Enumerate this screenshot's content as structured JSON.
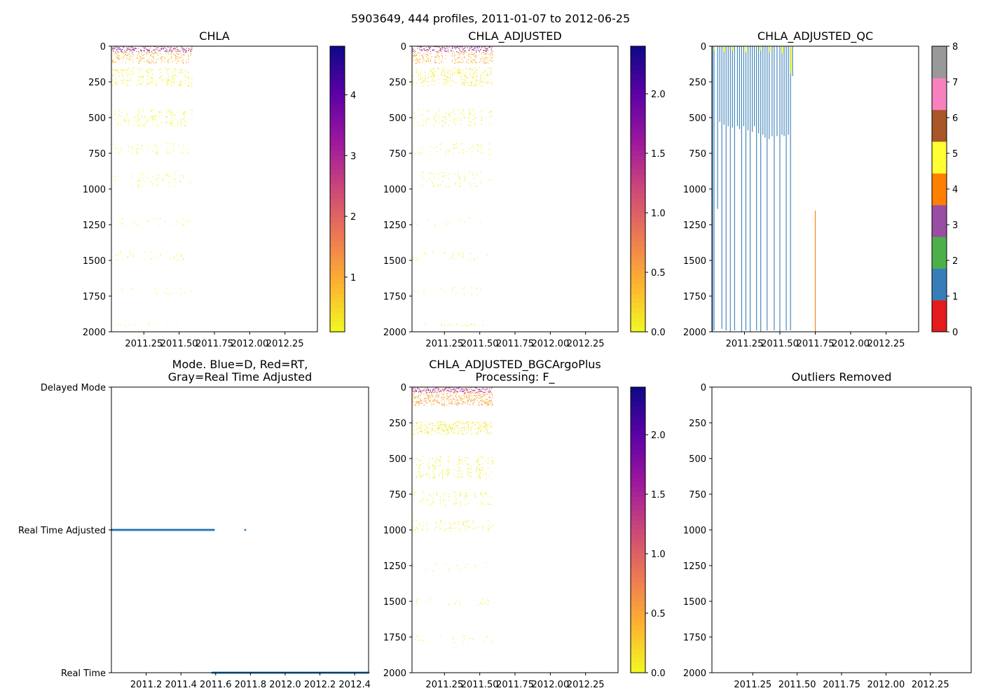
{
  "suptitle": "5903649, 444 profiles, 2011-01-07 to 2012-06-25",
  "colors": {
    "chla_ramp": [
      "#f0f921",
      "#fdb32f",
      "#ed7953",
      "#cc4778",
      "#9c179e",
      "#5c01a6",
      "#0d0887"
    ],
    "mode_series": "#1f77b4",
    "qc_palette": [
      "#e41a1c",
      "#377eb8",
      "#4daf4a",
      "#984ea3",
      "#ff7f00",
      "#ffff33",
      "#a65628",
      "#f781bf",
      "#999999"
    ]
  },
  "chart_data": [
    {
      "id": "chla",
      "type": "scatter",
      "title": "CHLA",
      "xlim": [
        2011.02,
        2012.48
      ],
      "ylim": [
        2000,
        0
      ],
      "xticks": [
        2011.25,
        2011.5,
        2011.75,
        2012.0,
        2012.25
      ],
      "xtick_labels": [
        "2011.25",
        "2011.50",
        "2011.75",
        "2012.00",
        "2012.25"
      ],
      "yticks": [
        0,
        250,
        500,
        750,
        1000,
        1250,
        1500,
        1750,
        2000
      ],
      "ytick_labels": [
        "0",
        "250",
        "500",
        "750",
        "1000",
        "1250",
        "1500",
        "1750",
        "2000"
      ],
      "colorbar": {
        "vmin": 0.1,
        "vmax": 4.8,
        "ticks": [
          1,
          2,
          3,
          4
        ],
        "tick_labels": [
          "1",
          "2",
          "3",
          "4"
        ]
      },
      "data_time_range": [
        2011.02,
        2011.59
      ],
      "depth_bands": [
        {
          "from": 0,
          "to": 40,
          "value": 3.0,
          "density": 0.8
        },
        {
          "from": 40,
          "to": 120,
          "value": 0.9,
          "density": 0.6
        },
        {
          "from": 150,
          "to": 280,
          "value": 0.2,
          "density": 0.5
        },
        {
          "from": 440,
          "to": 560,
          "value": 0.1,
          "density": 0.4
        },
        {
          "from": 680,
          "to": 760,
          "value": 0.1,
          "density": 0.3
        },
        {
          "from": 880,
          "to": 990,
          "value": 0.1,
          "density": 0.25
        },
        {
          "from": 1200,
          "to": 1260,
          "value": 0.1,
          "density": 0.2
        },
        {
          "from": 1440,
          "to": 1500,
          "value": 0.1,
          "density": 0.2
        },
        {
          "from": 1690,
          "to": 1740,
          "value": 0.1,
          "density": 0.2
        },
        {
          "from": 1940,
          "to": 1960,
          "value": 0.1,
          "density": 0.2
        }
      ]
    },
    {
      "id": "chla_adjusted",
      "type": "scatter",
      "title": "CHLA_ADJUSTED",
      "xlim": [
        2011.02,
        2012.48
      ],
      "ylim": [
        2000,
        0
      ],
      "xticks": [
        2011.25,
        2011.5,
        2011.75,
        2012.0,
        2012.25
      ],
      "xtick_labels": [
        "2011.25",
        "2011.50",
        "2011.75",
        "2012.00",
        "2012.25"
      ],
      "yticks": [
        0,
        250,
        500,
        750,
        1000,
        1250,
        1500,
        1750,
        2000
      ],
      "ytick_labels": [
        "0",
        "250",
        "500",
        "750",
        "1000",
        "1250",
        "1500",
        "1750",
        "2000"
      ],
      "colorbar": {
        "vmin": 0.0,
        "vmax": 2.4,
        "ticks": [
          0.0,
          0.5,
          1.0,
          1.5,
          2.0
        ],
        "tick_labels": [
          "0.0",
          "0.5",
          "1.0",
          "1.5",
          "2.0"
        ]
      },
      "data_time_range": [
        2011.02,
        2011.59
      ],
      "depth_bands": [
        {
          "from": 0,
          "to": 40,
          "value": 1.5,
          "density": 0.8
        },
        {
          "from": 40,
          "to": 120,
          "value": 0.45,
          "density": 0.6
        },
        {
          "from": 150,
          "to": 280,
          "value": 0.1,
          "density": 0.5
        },
        {
          "from": 440,
          "to": 560,
          "value": 0.05,
          "density": 0.4
        },
        {
          "from": 680,
          "to": 760,
          "value": 0.05,
          "density": 0.3
        },
        {
          "from": 880,
          "to": 990,
          "value": 0.05,
          "density": 0.25
        },
        {
          "from": 1200,
          "to": 1260,
          "value": 0.05,
          "density": 0.2
        },
        {
          "from": 1440,
          "to": 1500,
          "value": 0.05,
          "density": 0.2
        },
        {
          "from": 1690,
          "to": 1740,
          "value": 0.05,
          "density": 0.2
        },
        {
          "from": 1940,
          "to": 1960,
          "value": 0.05,
          "density": 0.2
        }
      ]
    },
    {
      "id": "chla_adjusted_qc",
      "type": "scatter",
      "title": "CHLA_ADJUSTED_QC",
      "xlim": [
        2011.02,
        2012.48
      ],
      "ylim": [
        2000,
        0
      ],
      "xticks": [
        2011.25,
        2011.5,
        2011.75,
        2012.0,
        2012.25
      ],
      "xtick_labels": [
        "2011.25",
        "2011.50",
        "2011.75",
        "2012.00",
        "2012.25"
      ],
      "yticks": [
        0,
        250,
        500,
        750,
        1000,
        1250,
        1500,
        1750,
        2000
      ],
      "ytick_labels": [
        "0",
        "250",
        "500",
        "750",
        "1000",
        "1250",
        "1500",
        "1750",
        "2000"
      ],
      "colorbar": {
        "vmin": 0,
        "vmax": 8,
        "ticks": [
          0,
          1,
          2,
          3,
          4,
          5,
          6,
          7,
          8
        ],
        "tick_labels": [
          "0",
          "1",
          "2",
          "3",
          "4",
          "5",
          "6",
          "7",
          "8"
        ]
      },
      "profiles": [
        {
          "t": 2011.025,
          "bottom": 2000,
          "qc": 1
        },
        {
          "t": 2011.035,
          "bottom": 1990,
          "qc": 1
        },
        {
          "t": 2011.06,
          "bottom": 1140,
          "qc": 1
        },
        {
          "t": 2011.075,
          "bottom": 530,
          "qc": 1
        },
        {
          "t": 2011.09,
          "bottom": 1980,
          "qc": 1
        },
        {
          "t": 2011.105,
          "bottom": 550,
          "qc": 1
        },
        {
          "t": 2011.12,
          "bottom": 1990,
          "qc": 1
        },
        {
          "t": 2011.135,
          "bottom": 560,
          "qc": 1
        },
        {
          "t": 2011.15,
          "bottom": 2000,
          "qc": 1
        },
        {
          "t": 2011.165,
          "bottom": 570,
          "qc": 1
        },
        {
          "t": 2011.18,
          "bottom": 1990,
          "qc": 1
        },
        {
          "t": 2011.2,
          "bottom": 560,
          "qc": 1
        },
        {
          "t": 2011.215,
          "bottom": 580,
          "qc": 1
        },
        {
          "t": 2011.23,
          "bottom": 2000,
          "qc": 1
        },
        {
          "t": 2011.245,
          "bottom": 560,
          "qc": 1
        },
        {
          "t": 2011.26,
          "bottom": 1990,
          "qc": 1
        },
        {
          "t": 2011.275,
          "bottom": 590,
          "qc": 1
        },
        {
          "t": 2011.29,
          "bottom": 2000,
          "qc": 1
        },
        {
          "t": 2011.305,
          "bottom": 600,
          "qc": 1
        },
        {
          "t": 2011.32,
          "bottom": 560,
          "qc": 1
        },
        {
          "t": 2011.335,
          "bottom": 1990,
          "qc": 1
        },
        {
          "t": 2011.35,
          "bottom": 610,
          "qc": 1
        },
        {
          "t": 2011.365,
          "bottom": 2000,
          "qc": 1
        },
        {
          "t": 2011.38,
          "bottom": 620,
          "qc": 1
        },
        {
          "t": 2011.395,
          "bottom": 640,
          "qc": 1
        },
        {
          "t": 2011.41,
          "bottom": 1990,
          "qc": 1
        },
        {
          "t": 2011.425,
          "bottom": 650,
          "qc": 1
        },
        {
          "t": 2011.445,
          "bottom": 630,
          "qc": 1
        },
        {
          "t": 2011.46,
          "bottom": 1990,
          "qc": 1
        },
        {
          "t": 2011.48,
          "bottom": 630,
          "qc": 1
        },
        {
          "t": 2011.5,
          "bottom": 2000,
          "qc": 1
        },
        {
          "t": 2011.515,
          "bottom": 620,
          "qc": 1
        },
        {
          "t": 2011.53,
          "bottom": 630,
          "qc": 1
        },
        {
          "t": 2011.545,
          "bottom": 1990,
          "qc": 1
        },
        {
          "t": 2011.56,
          "bottom": 620,
          "qc": 1
        },
        {
          "t": 2011.575,
          "bottom": 1990,
          "qc": 1
        },
        {
          "t": 2011.59,
          "bottom": 210,
          "qc": 1
        },
        {
          "t": 2011.75,
          "top": 1150,
          "bottom": 2000,
          "qc": 4
        }
      ],
      "surface_flags": [
        {
          "t": 2011.04,
          "bottom": 30,
          "qc": 5
        },
        {
          "t": 2011.11,
          "bottom": 40,
          "qc": 5
        },
        {
          "t": 2011.17,
          "bottom": 30,
          "qc": 5
        },
        {
          "t": 2011.26,
          "bottom": 40,
          "qc": 5
        },
        {
          "t": 2011.36,
          "bottom": 30,
          "qc": 5
        },
        {
          "t": 2011.43,
          "bottom": 40,
          "qc": 5
        },
        {
          "t": 2011.52,
          "bottom": 50,
          "qc": 5
        },
        {
          "t": 2011.58,
          "bottom": 190,
          "qc": 5
        }
      ]
    },
    {
      "id": "mode",
      "type": "scatter",
      "title": "Mode. Blue=D, Red=RT,",
      "title_line2": "Gray=Real Time Adjusted",
      "xlim": [
        2011.0,
        2012.48
      ],
      "ylim": [
        0,
        2
      ],
      "xticks": [
        2011.2,
        2011.4,
        2011.6,
        2011.8,
        2012.0,
        2012.2,
        2012.4
      ],
      "xtick_labels": [
        "2011.2",
        "2011.4",
        "2011.6",
        "2011.8",
        "2012.0",
        "2012.2",
        "2012.4"
      ],
      "yticks": [
        2,
        1,
        0
      ],
      "ytick_labels": [
        "Delayed Mode",
        "Real Time Adjusted",
        "Real Time"
      ],
      "series": [
        {
          "name": "Real Time Adjusted",
          "level": 1,
          "from": 2011.0,
          "to": 2011.59,
          "extra": [
            2011.77
          ]
        },
        {
          "name": "Real Time",
          "level": 0,
          "from": 2011.58,
          "to": 2012.48
        }
      ]
    },
    {
      "id": "bgc",
      "type": "scatter",
      "title": "CHLA_ADJUSTED_BGCArgoPlus",
      "title_line2": "Processing: F_",
      "xlim": [
        2011.02,
        2012.48
      ],
      "ylim": [
        2000,
        0
      ],
      "xticks": [
        2011.25,
        2011.5,
        2011.75,
        2012.0,
        2012.25
      ],
      "xtick_labels": [
        "2011.25",
        "2011.50",
        "2011.75",
        "2012.00",
        "2012.25"
      ],
      "yticks": [
        0,
        250,
        500,
        750,
        1000,
        1250,
        1500,
        1750,
        2000
      ],
      "ytick_labels": [
        "0",
        "250",
        "500",
        "750",
        "1000",
        "1250",
        "1500",
        "1750",
        "2000"
      ],
      "colorbar": {
        "vmin": 0.0,
        "vmax": 2.4,
        "ticks": [
          0.0,
          0.5,
          1.0,
          1.5,
          2.0
        ],
        "tick_labels": [
          "0.0",
          "0.5",
          "1.0",
          "1.5",
          "2.0"
        ]
      },
      "data_time_range": [
        2011.02,
        2011.59
      ],
      "depth_bands": [
        {
          "from": 0,
          "to": 40,
          "value": 1.4,
          "density": 0.9
        },
        {
          "from": 40,
          "to": 130,
          "value": 0.5,
          "density": 0.8
        },
        {
          "from": 240,
          "to": 330,
          "value": 0.1,
          "density": 0.7
        },
        {
          "from": 480,
          "to": 640,
          "value": 0.05,
          "density": 0.45
        },
        {
          "from": 730,
          "to": 830,
          "value": 0.05,
          "density": 0.35
        },
        {
          "from": 930,
          "to": 1010,
          "value": 0.05,
          "density": 0.3
        },
        {
          "from": 1230,
          "to": 1290,
          "value": 0.05,
          "density": 0.2
        },
        {
          "from": 1480,
          "to": 1530,
          "value": 0.05,
          "density": 0.2
        },
        {
          "from": 1740,
          "to": 1790,
          "value": 0.05,
          "density": 0.2
        }
      ]
    },
    {
      "id": "outliers",
      "type": "scatter",
      "title": "Outliers Removed",
      "xlim": [
        2011.02,
        2012.48
      ],
      "ylim": [
        2000,
        0
      ],
      "xticks": [
        2011.25,
        2011.5,
        2011.75,
        2012.0,
        2012.25
      ],
      "xtick_labels": [
        "2011.25",
        "2011.50",
        "2011.75",
        "2012.00",
        "2012.25"
      ],
      "yticks": [
        0,
        250,
        500,
        750,
        1000,
        1250,
        1500,
        1750,
        2000
      ],
      "ytick_labels": [
        "0",
        "250",
        "500",
        "750",
        "1000",
        "1250",
        "1500",
        "1750",
        "2000"
      ],
      "points": []
    }
  ]
}
